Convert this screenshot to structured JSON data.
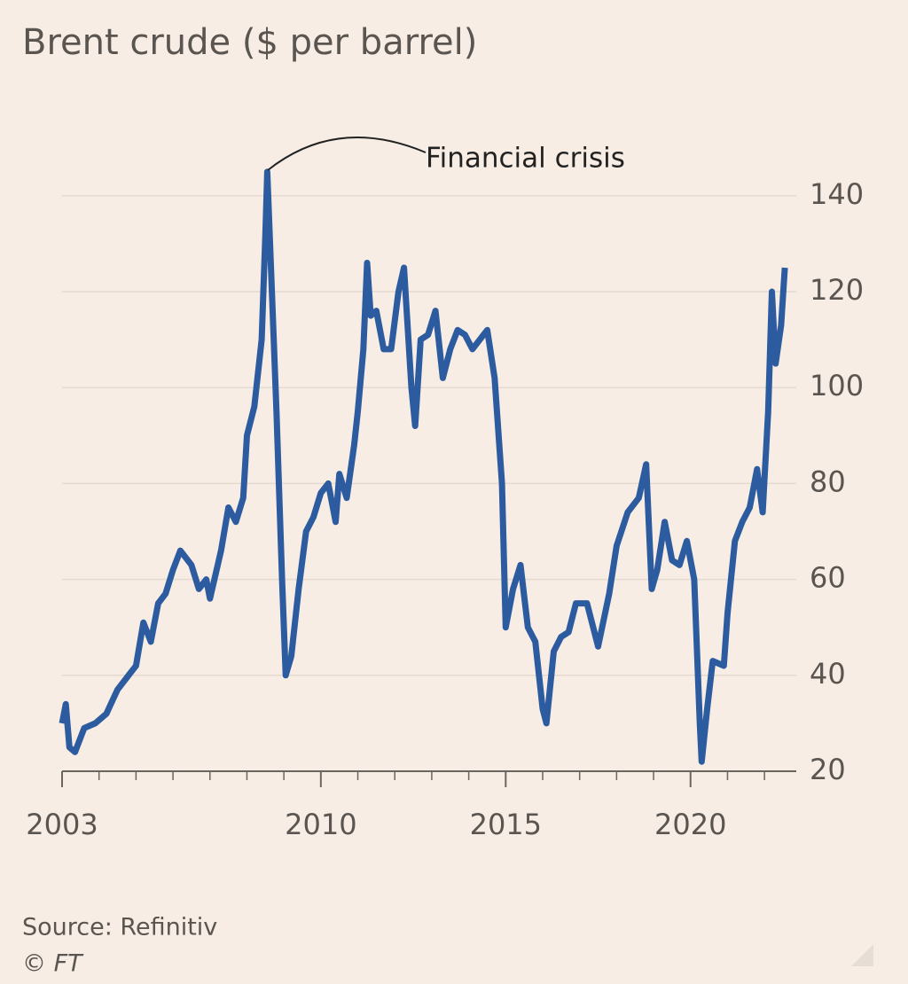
{
  "chart_data": {
    "type": "line",
    "title": "Brent crude ($ per barrel)",
    "annotation": "Financial crisis",
    "source": "Source: Refinitiv",
    "credit": "© FT",
    "series": [
      {
        "name": "Brent crude",
        "color": "#2c5c9f",
        "x": [
          2003.0,
          2003.1,
          2003.2,
          2003.35,
          2003.6,
          2003.9,
          2004.2,
          2004.5,
          2004.8,
          2005.0,
          2005.2,
          2005.4,
          2005.6,
          2005.8,
          2006.0,
          2006.2,
          2006.5,
          2006.7,
          2006.9,
          2007.0,
          2007.3,
          2007.5,
          2007.7,
          2007.9,
          2008.0,
          2008.2,
          2008.4,
          2008.5,
          2008.55,
          2008.65,
          2008.8,
          2008.95,
          2009.05,
          2009.2,
          2009.4,
          2009.6,
          2009.8,
          2010.0,
          2010.2,
          2010.4,
          2010.5,
          2010.7,
          2010.9,
          2011.0,
          2011.15,
          2011.25,
          2011.35,
          2011.5,
          2011.7,
          2011.9,
          2012.1,
          2012.25,
          2012.45,
          2012.55,
          2012.7,
          2012.9,
          2013.1,
          2013.3,
          2013.5,
          2013.7,
          2013.9,
          2014.1,
          2014.3,
          2014.5,
          2014.7,
          2014.9,
          2015.0,
          2015.2,
          2015.4,
          2015.6,
          2015.8,
          2016.0,
          2016.1,
          2016.3,
          2016.5,
          2016.7,
          2016.9,
          2017.2,
          2017.5,
          2017.8,
          2018.0,
          2018.3,
          2018.6,
          2018.8,
          2018.95,
          2019.1,
          2019.3,
          2019.5,
          2019.7,
          2019.9,
          2020.1,
          2020.25,
          2020.3,
          2020.45,
          2020.6,
          2020.9,
          2021.0,
          2021.2,
          2021.4,
          2021.6,
          2021.8,
          2021.95,
          2022.1,
          2022.2,
          2022.3,
          2022.45,
          2022.55
        ],
        "values": [
          30,
          34,
          25,
          24,
          29,
          30,
          32,
          37,
          40,
          42,
          51,
          47,
          55,
          57,
          62,
          66,
          63,
          58,
          60,
          56,
          66,
          75,
          72,
          77,
          90,
          96,
          110,
          132,
          145,
          125,
          95,
          60,
          40,
          44,
          58,
          70,
          73,
          78,
          80,
          72,
          82,
          77,
          88,
          95,
          108,
          126,
          115,
          116,
          108,
          108,
          120,
          125,
          100,
          92,
          110,
          111,
          116,
          102,
          108,
          112,
          111,
          108,
          110,
          112,
          102,
          80,
          50,
          58,
          63,
          50,
          47,
          33,
          30,
          45,
          48,
          49,
          55,
          55,
          46,
          57,
          67,
          74,
          77,
          84,
          58,
          62,
          72,
          64,
          63,
          68,
          60,
          30,
          22,
          33,
          43,
          42,
          53,
          68,
          72,
          75,
          83,
          74,
          95,
          120,
          105,
          113,
          125
        ]
      }
    ],
    "xlim": [
      2003,
      2022.86
    ],
    "xticks": [
      2003,
      2010,
      2015,
      2020
    ],
    "xminor": [
      2004,
      2005,
      2006,
      2007,
      2008,
      2009,
      2011,
      2012,
      2013,
      2014,
      2016,
      2017,
      2018,
      2019,
      2021,
      2022
    ],
    "ylim": [
      20,
      146
    ],
    "yticks": [
      20,
      40,
      60,
      80,
      100,
      120,
      140
    ],
    "grid": true
  }
}
